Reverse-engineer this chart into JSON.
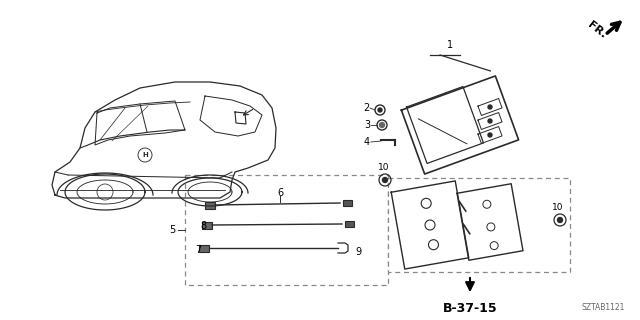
{
  "bg_color": "#ffffff",
  "title_code": "SZTAB1121",
  "fr_label": "FR.",
  "b_ref": "B-37-15",
  "line_color": "#2a2a2a",
  "dashed_color": "#888888"
}
